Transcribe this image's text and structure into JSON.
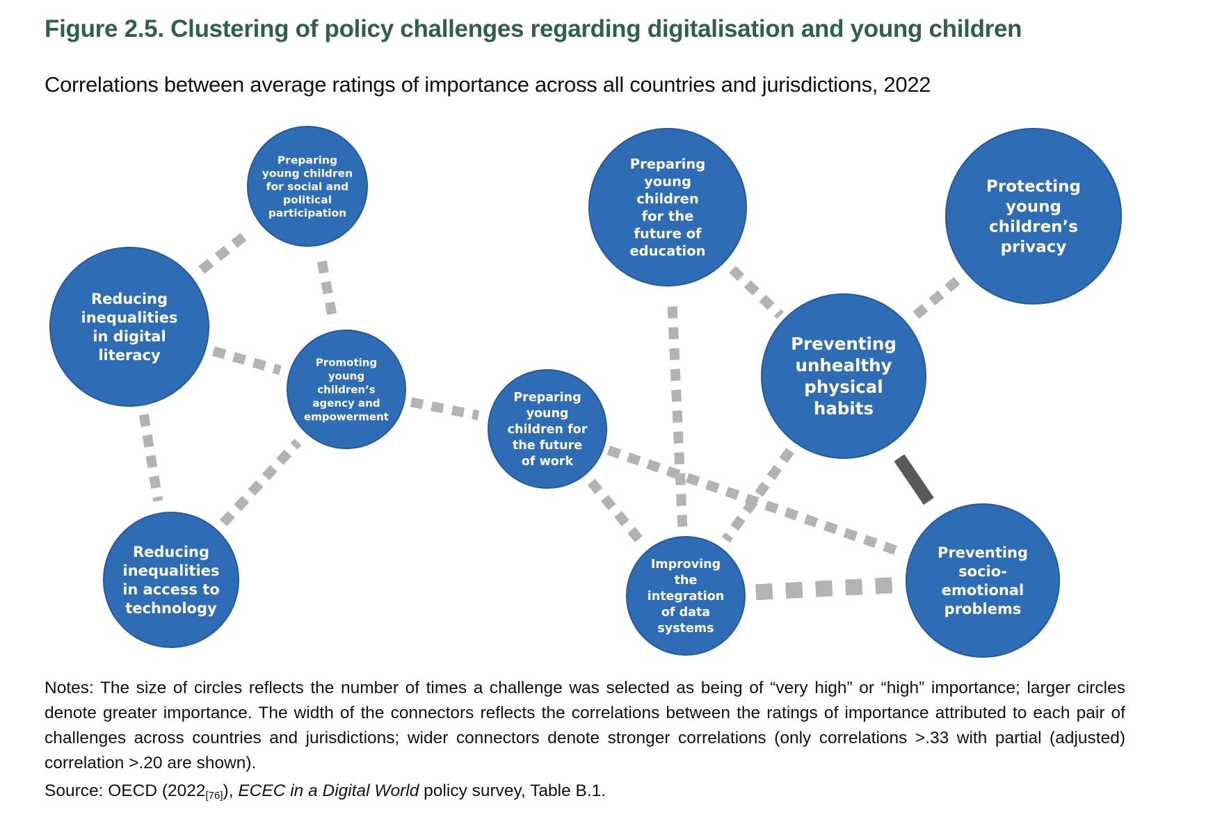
{
  "figure": {
    "title": "Figure 2.5. Clustering of policy challenges regarding digitalisation and young children",
    "subtitle": "Correlations between average ratings of importance across all countries and jurisdictions, 2022"
  },
  "nodes": [
    {
      "id": "social",
      "lines": [
        "Preparing",
        "young children",
        "for social and",
        "political",
        "participation"
      ]
    },
    {
      "id": "literacy",
      "lines": [
        "Reducing",
        "inequalities",
        "in digital",
        "literacy"
      ]
    },
    {
      "id": "agency",
      "lines": [
        "Promoting",
        "young",
        "children’s",
        "agency and",
        "empowerment"
      ]
    },
    {
      "id": "access",
      "lines": [
        "Reducing",
        "inequalities",
        "in access to",
        "technology"
      ]
    },
    {
      "id": "work",
      "lines": [
        "Preparing",
        "young",
        "children for",
        "the future",
        "of work"
      ]
    },
    {
      "id": "education",
      "lines": [
        "Preparing",
        "young",
        "children",
        "for the",
        "future of",
        "education"
      ]
    },
    {
      "id": "privacy",
      "lines": [
        "Protecting",
        "young",
        "children’s",
        "privacy"
      ]
    },
    {
      "id": "physical",
      "lines": [
        "Preventing",
        "unhealthy",
        "physical",
        "habits"
      ]
    },
    {
      "id": "data",
      "lines": [
        "Improving",
        "the",
        "integration",
        "of data",
        "systems"
      ]
    },
    {
      "id": "socio",
      "lines": [
        "Preventing",
        "socio-",
        "emotional",
        "problems"
      ]
    }
  ],
  "connectors": [
    {
      "from": "literacy",
      "to": "social",
      "strength": "weak"
    },
    {
      "from": "social",
      "to": "agency",
      "strength": "weak"
    },
    {
      "from": "literacy",
      "to": "agency",
      "strength": "weak"
    },
    {
      "from": "literacy",
      "to": "access",
      "strength": "weak"
    },
    {
      "from": "access",
      "to": "agency",
      "strength": "weak"
    },
    {
      "from": "agency",
      "to": "work",
      "strength": "weak"
    },
    {
      "from": "work",
      "to": "data",
      "strength": "weak"
    },
    {
      "from": "work",
      "to": "socio",
      "strength": "weak"
    },
    {
      "from": "education",
      "to": "data",
      "strength": "weak"
    },
    {
      "from": "education",
      "to": "physical",
      "strength": "weak"
    },
    {
      "from": "physical",
      "to": "privacy",
      "strength": "weak"
    },
    {
      "from": "physical",
      "to": "data",
      "strength": "weak"
    },
    {
      "from": "data",
      "to": "socio",
      "strength": "strong"
    },
    {
      "from": "physical",
      "to": "socio",
      "strength": "solid"
    }
  ],
  "colors": {
    "node_fill": "#2e6db5",
    "node_edge": "#245a9a",
    "connector": "#b3b3b3",
    "solid_connector": "#595959",
    "title": "#2f5f4f"
  },
  "notes": "Notes: The size of circles reflects the number of times a challenge was selected as being of “very high” or “high” importance; larger circles denote greater importance. The width of the connectors reflects the correlations between the ratings of importance attributed to each pair of challenges across countries and jurisdictions; wider connectors denote stronger correlations (only correlations >.33 with partial (adjusted) correlation >.20 are shown).",
  "source": {
    "prefix": "Source: OECD (2022",
    "ref": "[76]",
    "after_ref": "), ",
    "italic": "ECEC in a Digital World",
    "suffix": " policy survey, Table B.1."
  }
}
